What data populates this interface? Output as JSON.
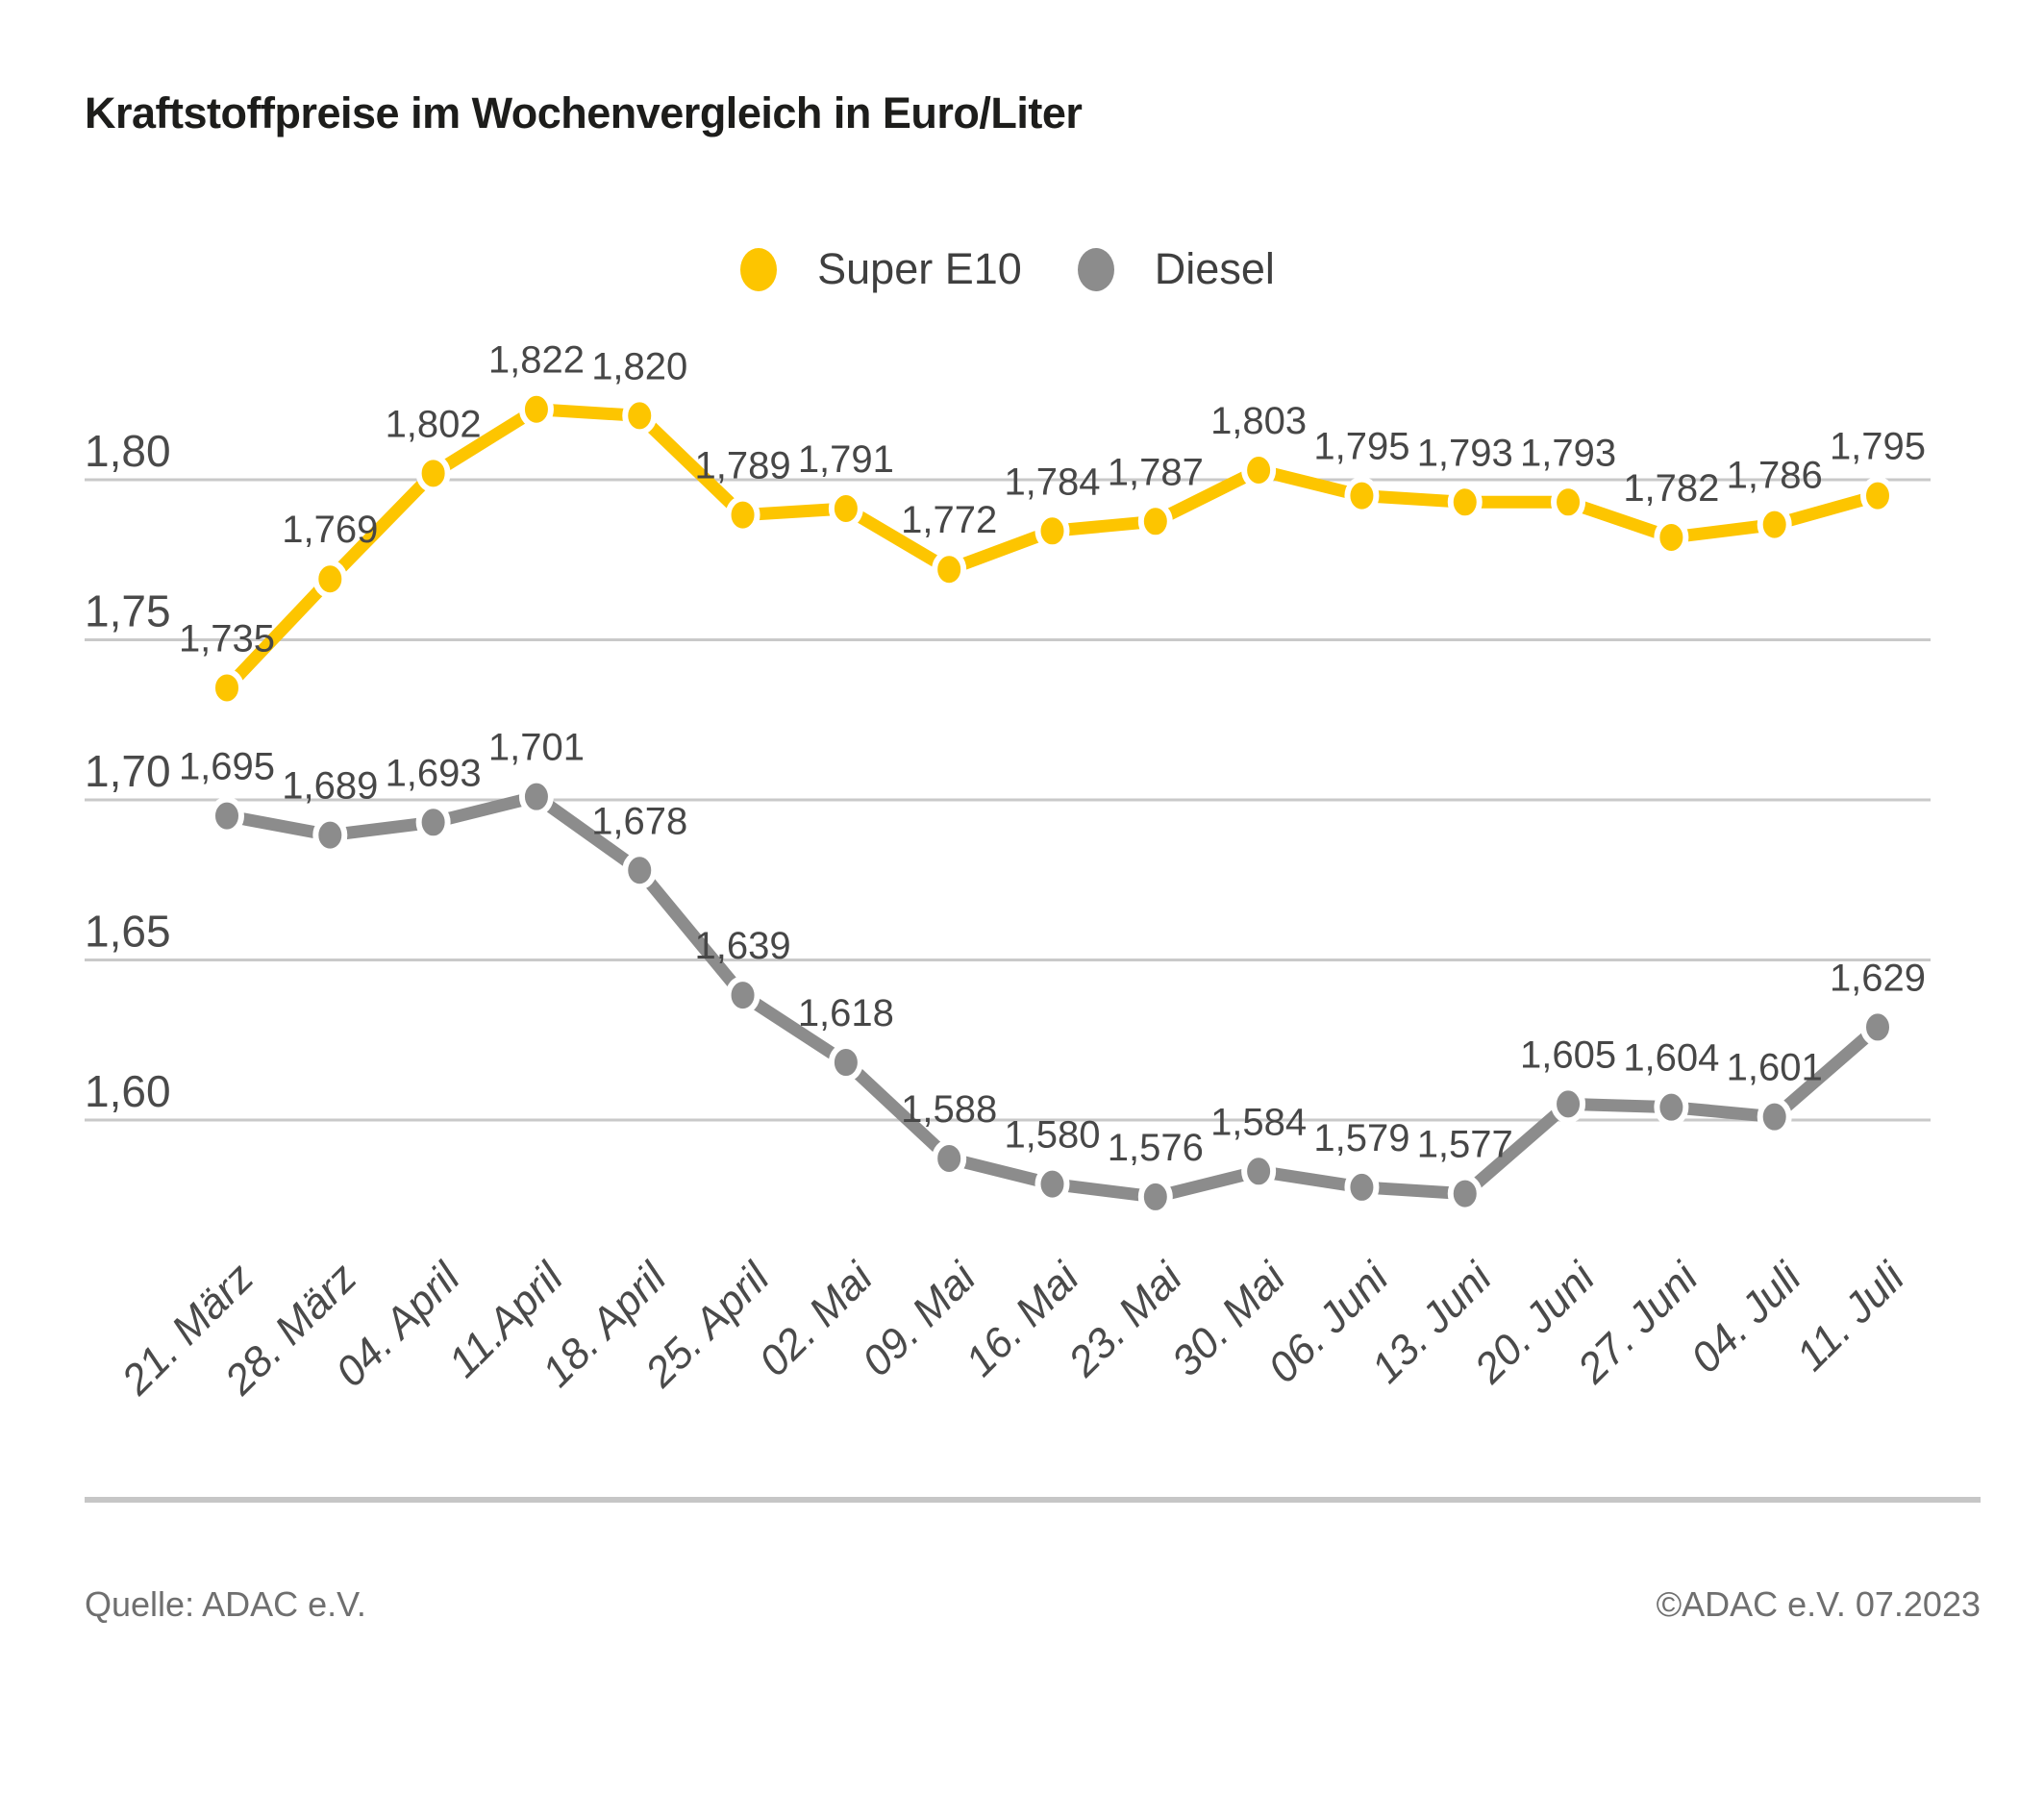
{
  "title": "Kraftstoffpreise im Wochenvergleich in Euro/Liter",
  "legend": [
    {
      "label": "Super E10",
      "color": "#FDC500"
    },
    {
      "label": "Diesel",
      "color": "#8C8C8C"
    }
  ],
  "chart_data": {
    "type": "line",
    "title": "Kraftstoffpreise im Wochenvergleich in Euro/Liter",
    "xlabel": "",
    "ylabel": "Euro/Liter",
    "grid": true,
    "legend_position": "top-center",
    "ylim": [
      1.555,
      1.845
    ],
    "categories": [
      "21. März",
      "28. März",
      "04. April",
      "11.April",
      "18. April",
      "25. April",
      "02. Mai",
      "09. Mai",
      "16. Mai",
      "23. Mai",
      "30. Mai",
      "06. Juni",
      "13. Juni",
      "20. Juni",
      "27. Juni",
      "04. Juli",
      "11. Juli"
    ],
    "y_ticks": [
      {
        "value": 1.8,
        "label": "1,80"
      },
      {
        "value": 1.75,
        "label": "1,75"
      },
      {
        "value": 1.7,
        "label": "1,70"
      },
      {
        "value": 1.65,
        "label": "1,65"
      },
      {
        "value": 1.6,
        "label": "1,60"
      }
    ],
    "series": [
      {
        "name": "Diesel",
        "color": "#8C8C8C",
        "values": [
          1.695,
          1.689,
          1.693,
          1.701,
          1.678,
          1.639,
          1.618,
          1.588,
          1.58,
          1.576,
          1.584,
          1.579,
          1.577,
          1.605,
          1.604,
          1.601,
          1.629
        ],
        "labels": [
          "1,695",
          "1,689",
          "1,693",
          "1,701",
          "1,678",
          "1,639",
          "1,618",
          "1,588",
          "1,580",
          "1,576",
          "1,584",
          "1,579",
          "1,577",
          "1,605",
          "1,604",
          "1,601",
          "1,629"
        ]
      },
      {
        "name": "Super E10",
        "color": "#FDC500",
        "values": [
          1.735,
          1.769,
          1.802,
          1.822,
          1.82,
          1.789,
          1.791,
          1.772,
          1.784,
          1.787,
          1.803,
          1.795,
          1.793,
          1.793,
          1.782,
          1.786,
          1.795
        ],
        "labels": [
          "1,735",
          "1,769",
          "1,802",
          "1,822",
          "1,820",
          "1,789",
          "1,791",
          "1,772",
          "1,784",
          "1,787",
          "1,803",
          "1,795",
          "1,793",
          "1,793",
          "1,782",
          "1,786",
          "1,795"
        ]
      }
    ]
  },
  "footer": {
    "source": "Quelle: ADAC e.V.",
    "copyright": "©ADAC e.V. 07.2023"
  }
}
